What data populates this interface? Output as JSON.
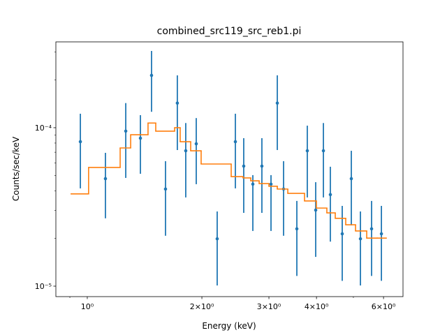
{
  "chart_data": {
    "type": "scatter",
    "title": "combined_src119_src_reb1.pi",
    "x_label": "Energy (keV)",
    "y_label": "Counts/sec/keV",
    "log_x": true,
    "log_y": true,
    "xlim": [
      0.827,
      6.75
    ],
    "ylim": [
      8.59e-06,
      0.000348
    ],
    "xticks": [
      {
        "value": 1,
        "label": "10⁰"
      },
      {
        "value": 2,
        "label": "2×10⁰"
      },
      {
        "value": 3,
        "label": "3×10⁰"
      },
      {
        "value": 4,
        "label": "4×10⁰"
      },
      {
        "value": 6,
        "label": "6×10⁰"
      }
    ],
    "xminorticks": [
      0.9,
      5
    ],
    "yticks": [
      {
        "value": 0.0001,
        "label": "10⁻⁴"
      },
      {
        "value": 1e-05,
        "label": "10⁻⁵"
      }
    ],
    "yminorticks": [
      2e-05,
      3e-05,
      4e-05,
      5e-05,
      6e-05,
      7e-05,
      8e-05,
      9e-05,
      0.0002,
      0.0003
    ],
    "series": [
      {
        "color": "#1f77b4",
        "x": [
          0.959,
          1.116,
          1.262,
          1.379,
          1.475,
          1.605,
          1.724,
          1.814,
          1.933,
          2.194,
          2.449,
          2.576,
          2.722,
          2.875,
          3.038,
          3.156,
          3.278,
          3.552,
          3.784,
          3.981,
          4.171,
          4.35,
          4.674,
          4.938,
          5.218,
          5.582,
          5.924
        ],
        "values": [
          8.16e-05,
          4.77e-05,
          9.51e-05,
          8.59e-05,
          0.000214,
          4.1e-05,
          0.000143,
          7.15e-05,
          7.92e-05,
          1.99e-05,
          8.16e-05,
          5.72e-05,
          4.4e-05,
          5.72e-05,
          4.4e-05,
          0.000143,
          4.1e-05,
          2.3e-05,
          7.15e-05,
          3.02e-05,
          7.15e-05,
          3.78e-05,
          2.14e-05,
          4.77e-05,
          1.99e-05,
          2.3e-05,
          2.14e-05
        ],
        "upper": [
          0.0001225,
          6.94e-05,
          0.000143,
          0.00012,
          0.000305,
          6.15e-05,
          0.000214,
          0.000107,
          0.000115,
          2.96e-05,
          0.0001225,
          8.59e-05,
          5.02e-05,
          8.59e-05,
          5.02e-05,
          0.000214,
          6.15e-05,
          3.45e-05,
          0.000103,
          4.53e-05,
          0.000107,
          5.67e-05,
          3.21e-05,
          7.15e-05,
          2.96e-05,
          3.45e-05,
          3.21e-05
        ],
        "lower": [
          4.14e-05,
          2.68e-05,
          4.82e-05,
          5.12e-05,
          0.000126,
          2.08e-05,
          7.23e-05,
          3.63e-05,
          4.4e-05,
          1.01e-05,
          4.14e-05,
          2.9e-05,
          2.23e-05,
          2.9e-05,
          2.23e-05,
          7.23e-05,
          2.08e-05,
          1.16e-05,
          3.63e-05,
          1.53e-05,
          3.63e-05,
          1.91e-05,
          1.08e-05,
          2.42e-05,
          1.01e-05,
          1.16e-05,
          1.08e-05
        ]
      },
      {
        "color": "#ff7f0e",
        "drawstyle": "steps",
        "bins": [
          0.907,
          1.008,
          1.22,
          1.3,
          1.444,
          1.513,
          1.696,
          1.754,
          1.869,
          1.991,
          2.388,
          2.566,
          2.688,
          2.828,
          3.0,
          3.156,
          3.363,
          3.721,
          3.998,
          4.259,
          4.481,
          4.774,
          5.066,
          5.42,
          5.773,
          6.1
        ],
        "values": [
          3.82e-05,
          5.61e-05,
          7.45e-05,
          9.03e-05,
          0.000107,
          9.51e-05,
          0.0001,
          8.16e-05,
          7.15e-05,
          5.9e-05,
          4.91e-05,
          4.82e-05,
          4.62e-05,
          4.44e-05,
          4.27e-05,
          4.1e-05,
          3.85e-05,
          3.45e-05,
          3.11e-05,
          2.9e-05,
          2.68e-05,
          2.44e-05,
          2.23e-05,
          2.01e-05,
          2.01e-05
        ]
      }
    ]
  }
}
